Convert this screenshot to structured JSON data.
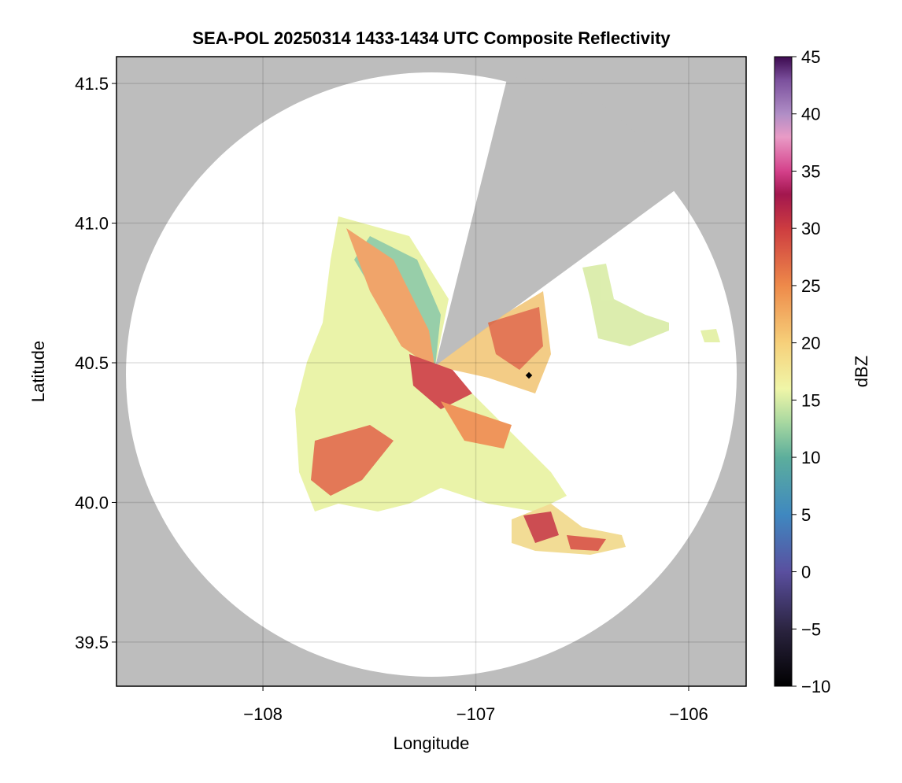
{
  "chart_data": {
    "type": "radar-map",
    "title": "SEA-POL 20250314 1433-1434 UTC Composite Reflectivity",
    "x_label": "Longitude",
    "y_label": "Latitude",
    "xlim": [
      -108.688,
      -105.73
    ],
    "ylim": [
      39.342,
      41.596
    ],
    "xticks": [
      {
        "value": -108,
        "label": "−108"
      },
      {
        "value": -107,
        "label": "−107"
      },
      {
        "value": -106,
        "label": "−106"
      }
    ],
    "yticks": [
      39.5,
      40.0,
      40.5,
      41.0,
      41.5
    ],
    "ytick_labels": [
      "39.5",
      "40.0",
      "40.5",
      "41.0",
      "41.5"
    ],
    "grid": true,
    "colorbar": {
      "label": "dBZ",
      "lim": [
        -10,
        45
      ],
      "ticks": [
        {
          "value": -10,
          "label": "−10"
        },
        {
          "value": -5,
          "label": "−5"
        },
        0,
        5,
        10,
        15,
        20,
        25,
        30,
        35,
        40,
        45
      ],
      "colormap": [
        {
          "value": -10,
          "color": "#000000"
        },
        {
          "value": -5,
          "color": "#2b2440"
        },
        {
          "value": 0,
          "color": "#5a4f9f"
        },
        {
          "value": 5,
          "color": "#3f88c0"
        },
        {
          "value": 10,
          "color": "#5cae9c"
        },
        {
          "value": 13,
          "color": "#a6d7a0"
        },
        {
          "value": 16,
          "color": "#f0f6a8"
        },
        {
          "value": 20,
          "color": "#f6d07a"
        },
        {
          "value": 25,
          "color": "#ee8a4a"
        },
        {
          "value": 30,
          "color": "#cd3c40"
        },
        {
          "value": 33,
          "color": "#a2164e"
        },
        {
          "value": 35,
          "color": "#d4408a"
        },
        {
          "value": 38,
          "color": "#e99bc6"
        },
        {
          "value": 40,
          "color": "#b08ec6"
        },
        {
          "value": 43,
          "color": "#7a4f9c"
        },
        {
          "value": 45,
          "color": "#3d0a50"
        }
      ]
    }
  }
}
